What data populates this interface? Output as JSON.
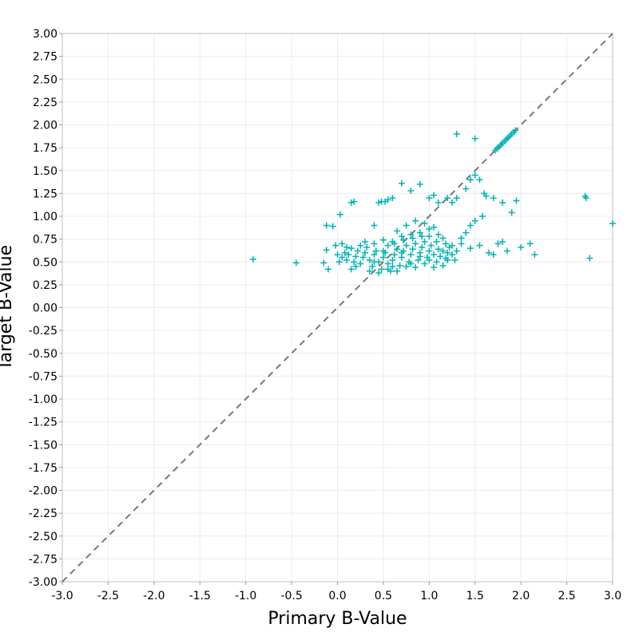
{
  "chart_data": {
    "type": "scatter",
    "xlabel": "Primary B-Value",
    "ylabel": "Target B-Value",
    "xlim": [
      -3.0,
      3.0
    ],
    "ylim": [
      -3.0,
      3.0
    ],
    "x_ticks": [
      "-3.0",
      "-2.5",
      "-2.0",
      "-1.5",
      "-1.0",
      "-0.5",
      "0.0",
      "0.5",
      "1.0",
      "1.5",
      "2.0",
      "2.5",
      "3.0"
    ],
    "y_ticks": [
      "3.00",
      "2.75",
      "2.50",
      "2.25",
      "2.00",
      "1.75",
      "1.50",
      "1.25",
      "1.00",
      "0.75",
      "0.50",
      "0.25",
      "0.00",
      "-0.25",
      "-0.50",
      "-0.75",
      "-1.00",
      "-1.25",
      "-1.50",
      "-1.75",
      "-2.00",
      "-2.25",
      "-2.50",
      "-2.75",
      "-3.00"
    ],
    "grid": true,
    "marker": "+",
    "series_color": "#00b3b3",
    "reference_line": {
      "style": "dashed",
      "color": "#777777",
      "from": [
        -3.0,
        -3.0
      ],
      "to": [
        3.0,
        3.0
      ]
    },
    "points": [
      [
        -0.92,
        0.53
      ],
      [
        -0.45,
        0.49
      ],
      [
        -0.15,
        0.49
      ],
      [
        -0.12,
        0.63
      ],
      [
        -0.1,
        0.42
      ],
      [
        -0.12,
        0.9
      ],
      [
        -0.05,
        0.89
      ],
      [
        0.03,
        1.02
      ],
      [
        0.15,
        1.15
      ],
      [
        0.18,
        1.16
      ],
      [
        0.45,
        1.15
      ],
      [
        0.48,
        1.16
      ],
      [
        0.52,
        1.16
      ],
      [
        0.55,
        1.18
      ],
      [
        0.6,
        1.2
      ],
      [
        0.4,
        0.9
      ],
      [
        0.7,
        1.36
      ],
      [
        0.8,
        1.28
      ],
      [
        0.9,
        1.35
      ],
      [
        1.0,
        1.2
      ],
      [
        1.05,
        1.23
      ],
      [
        1.1,
        1.15
      ],
      [
        1.2,
        1.2
      ],
      [
        1.3,
        1.9
      ],
      [
        1.5,
        1.85
      ],
      [
        1.6,
        1.25
      ],
      [
        1.62,
        1.22
      ],
      [
        1.7,
        1.2
      ],
      [
        1.8,
        1.15
      ],
      [
        1.9,
        1.04
      ],
      [
        1.95,
        1.17
      ],
      [
        2.1,
        0.7
      ],
      [
        2.15,
        0.58
      ],
      [
        2.7,
        1.22
      ],
      [
        2.71,
        1.2
      ],
      [
        2.75,
        0.54
      ],
      [
        3.0,
        0.92
      ],
      [
        1.65,
        0.6
      ],
      [
        1.7,
        0.58
      ],
      [
        1.75,
        0.7
      ],
      [
        1.8,
        0.72
      ],
      [
        1.85,
        0.62
      ],
      [
        2.0,
        0.66
      ],
      [
        1.55,
        0.68
      ],
      [
        1.45,
        0.65
      ],
      [
        1.35,
        0.7
      ],
      [
        1.58,
        1.0
      ],
      [
        1.5,
        0.95
      ],
      [
        1.45,
        0.9
      ],
      [
        1.4,
        0.82
      ],
      [
        1.35,
        0.76
      ],
      [
        1.25,
        1.15
      ],
      [
        1.3,
        1.2
      ],
      [
        1.4,
        1.3
      ],
      [
        1.45,
        1.4
      ],
      [
        1.5,
        1.45
      ],
      [
        1.55,
        1.4
      ],
      [
        1.72,
        1.72
      ],
      [
        1.74,
        1.74
      ],
      [
        1.76,
        1.76
      ],
      [
        1.78,
        1.78
      ],
      [
        1.8,
        1.8
      ],
      [
        1.82,
        1.82
      ],
      [
        1.84,
        1.84
      ],
      [
        1.86,
        1.86
      ],
      [
        1.88,
        1.88
      ],
      [
        1.9,
        1.9
      ],
      [
        1.92,
        1.92
      ],
      [
        1.94,
        1.94
      ],
      [
        0.05,
        0.55
      ],
      [
        0.08,
        0.6
      ],
      [
        0.1,
        0.52
      ],
      [
        0.12,
        0.58
      ],
      [
        0.15,
        0.65
      ],
      [
        0.18,
        0.5
      ],
      [
        0.2,
        0.56
      ],
      [
        0.22,
        0.62
      ],
      [
        0.25,
        0.48
      ],
      [
        0.28,
        0.55
      ],
      [
        0.3,
        0.6
      ],
      [
        0.32,
        0.66
      ],
      [
        0.35,
        0.52
      ],
      [
        0.38,
        0.45
      ],
      [
        0.4,
        0.58
      ],
      [
        0.42,
        0.62
      ],
      [
        0.45,
        0.5
      ],
      [
        0.48,
        0.42
      ],
      [
        0.5,
        0.55
      ],
      [
        0.52,
        0.6
      ],
      [
        0.55,
        0.48
      ],
      [
        0.58,
        0.4
      ],
      [
        0.6,
        0.52
      ],
      [
        0.62,
        0.58
      ],
      [
        0.65,
        0.64
      ],
      [
        0.68,
        0.46
      ],
      [
        0.7,
        0.55
      ],
      [
        0.72,
        0.62
      ],
      [
        0.75,
        0.68
      ],
      [
        0.78,
        0.5
      ],
      [
        0.8,
        0.58
      ],
      [
        0.82,
        0.64
      ],
      [
        0.85,
        0.7
      ],
      [
        0.88,
        0.52
      ],
      [
        0.9,
        0.6
      ],
      [
        0.92,
        0.66
      ],
      [
        0.95,
        0.72
      ],
      [
        0.98,
        0.55
      ],
      [
        1.0,
        0.62
      ],
      [
        1.02,
        0.68
      ],
      [
        1.05,
        0.58
      ],
      [
        1.08,
        0.5
      ],
      [
        1.1,
        0.64
      ],
      [
        1.12,
        0.56
      ],
      [
        1.15,
        0.62
      ],
      [
        1.18,
        0.54
      ],
      [
        1.2,
        0.6
      ],
      [
        1.22,
        0.66
      ],
      [
        1.25,
        0.58
      ],
      [
        1.28,
        0.52
      ],
      [
        1.3,
        0.62
      ],
      [
        0.35,
        0.4
      ],
      [
        0.45,
        0.38
      ],
      [
        0.55,
        0.42
      ],
      [
        0.65,
        0.4
      ],
      [
        0.75,
        0.45
      ],
      [
        0.85,
        0.44
      ],
      [
        0.95,
        0.48
      ],
      [
        1.05,
        0.44
      ],
      [
        1.15,
        0.46
      ],
      [
        0.3,
        0.72
      ],
      [
        0.4,
        0.7
      ],
      [
        0.5,
        0.74
      ],
      [
        0.6,
        0.72
      ],
      [
        0.7,
        0.78
      ],
      [
        0.8,
        0.8
      ],
      [
        0.9,
        0.82
      ],
      [
        1.0,
        0.86
      ],
      [
        0.75,
        0.9
      ],
      [
        0.85,
        0.95
      ],
      [
        0.95,
        0.92
      ],
      [
        1.05,
        0.88
      ],
      [
        1.1,
        0.8
      ],
      [
        1.15,
        0.76
      ],
      [
        0.65,
        0.84
      ],
      [
        0.55,
        0.68
      ],
      [
        0.62,
        0.7
      ],
      [
        0.72,
        0.74
      ],
      [
        0.82,
        0.76
      ],
      [
        0.92,
        0.78
      ],
      [
        1.0,
        0.78
      ],
      [
        1.08,
        0.72
      ],
      [
        1.18,
        0.7
      ],
      [
        1.25,
        0.68
      ],
      [
        0.0,
        0.58
      ],
      [
        0.02,
        0.5
      ],
      [
        0.25,
        0.68
      ],
      [
        0.2,
        0.45
      ],
      [
        0.15,
        0.42
      ],
      [
        0.1,
        0.66
      ],
      [
        0.05,
        0.7
      ],
      [
        -0.02,
        0.68
      ],
      [
        0.4,
        0.5
      ],
      [
        0.6,
        0.45
      ],
      [
        0.8,
        0.48
      ],
      [
        1.0,
        0.52
      ],
      [
        1.2,
        0.52
      ],
      [
        0.5,
        0.62
      ],
      [
        0.7,
        0.6
      ],
      [
        0.9,
        0.56
      ]
    ]
  }
}
